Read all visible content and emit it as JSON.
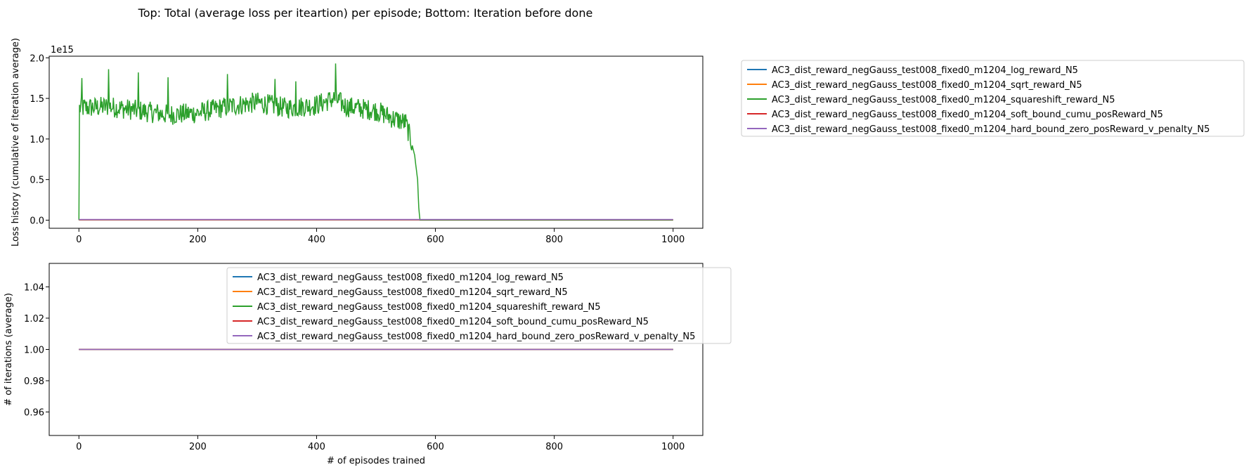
{
  "figure_title": "Top: Total (average loss per iteartion) per episode; Bottom: Iteration before done",
  "colors": {
    "log": "#1f77b4",
    "sqrt": "#ff7f0e",
    "squareshift": "#2ca02c",
    "soft": "#d62728",
    "hard": "#9467bd"
  },
  "chart_data": [
    {
      "type": "line",
      "title": "",
      "xlabel": "",
      "ylabel": "Loss history (cumulative of iteration average)",
      "y_offset_label": "1e15",
      "xlim": [
        -50,
        1050
      ],
      "ylim": [
        -0.1,
        2.02
      ],
      "x_ticks": [
        0,
        200,
        400,
        600,
        800,
        1000
      ],
      "y_ticks": [
        0.0,
        0.5,
        1.0,
        1.5,
        2.0
      ],
      "y_tick_labels": [
        "0.0",
        "0.5",
        "1.0",
        "1.5",
        "2.0"
      ],
      "grid": false,
      "legend_position": "outside-right",
      "series": [
        {
          "name": "AC3_dist_reward_negGauss_test008_fixed0_m1204_log_reward_N5",
          "color_key": "log",
          "x_range": [
            0,
            1000
          ],
          "constant": 0.003
        },
        {
          "name": "AC3_dist_reward_negGauss_test008_fixed0_m1204_sqrt_reward_N5",
          "color_key": "sqrt",
          "x_range": [
            0,
            1000
          ],
          "constant": 0.004
        },
        {
          "name": "AC3_dist_reward_negGauss_test008_fixed0_m1204_squareshift_reward_N5",
          "color_key": "squareshift",
          "x_range": [
            0,
            1000
          ],
          "constant": 0.0,
          "noisy_segment": {
            "x": [
              1,
              50,
              100,
              150,
              200,
              250,
              300,
              350,
              400,
              430,
              450,
              500,
              530,
              550,
              560,
              565,
              570,
              572,
              574
            ],
            "y": [
              1.38,
              1.4,
              1.35,
              1.3,
              1.32,
              1.4,
              1.45,
              1.38,
              1.42,
              1.5,
              1.4,
              1.35,
              1.25,
              1.2,
              0.95,
              0.8,
              0.5,
              0.15,
              0.0
            ],
            "noise": 0.13,
            "spikes": [
              [
                5,
                1.75
              ],
              [
                50,
                1.86
              ],
              [
                100,
                1.82
              ],
              [
                150,
                1.76
              ],
              [
                250,
                1.8
              ],
              [
                330,
                1.74
              ],
              [
                365,
                1.71
              ],
              [
                432,
                1.93
              ]
            ]
          }
        },
        {
          "name": "AC3_dist_reward_negGauss_test008_fixed0_m1204_soft_bound_cumu_posReward_N5",
          "color_key": "soft",
          "x_range": [
            0,
            1000
          ],
          "constant": 0.006
        },
        {
          "name": "AC3_dist_reward_negGauss_test008_fixed0_m1204_hard_bound_zero_posReward_v_penalty_N5",
          "color_key": "hard",
          "x_range": [
            0,
            1000
          ],
          "constant": 0.008
        }
      ]
    },
    {
      "type": "line",
      "title": "",
      "xlabel": "# of episodes trained",
      "ylabel": "# of iterations (average)",
      "xlim": [
        -50,
        1050
      ],
      "ylim": [
        0.945,
        1.055
      ],
      "x_ticks": [
        0,
        200,
        400,
        600,
        800,
        1000
      ],
      "y_ticks": [
        0.96,
        0.98,
        1.0,
        1.02,
        1.04
      ],
      "y_tick_labels": [
        "0.96",
        "0.98",
        "1.00",
        "1.02",
        "1.04"
      ],
      "grid": false,
      "legend_position": "top-right",
      "series": [
        {
          "name": "AC3_dist_reward_negGauss_test008_fixed0_m1204_log_reward_N5",
          "color_key": "log",
          "x_range": [
            0,
            1000
          ],
          "constant": 1.0
        },
        {
          "name": "AC3_dist_reward_negGauss_test008_fixed0_m1204_sqrt_reward_N5",
          "color_key": "sqrt",
          "x_range": [
            0,
            1000
          ],
          "constant": 1.0
        },
        {
          "name": "AC3_dist_reward_negGauss_test008_fixed0_m1204_squareshift_reward_N5",
          "color_key": "squareshift",
          "x_range": [
            0,
            1000
          ],
          "constant": 1.0
        },
        {
          "name": "AC3_dist_reward_negGauss_test008_fixed0_m1204_soft_bound_cumu_posReward_N5",
          "color_key": "soft",
          "x_range": [
            0,
            1000
          ],
          "constant": 1.0
        },
        {
          "name": "AC3_dist_reward_negGauss_test008_fixed0_m1204_hard_bound_zero_posReward_v_penalty_N5",
          "color_key": "hard",
          "x_range": [
            0,
            1000
          ],
          "constant": 1.0
        }
      ]
    }
  ]
}
